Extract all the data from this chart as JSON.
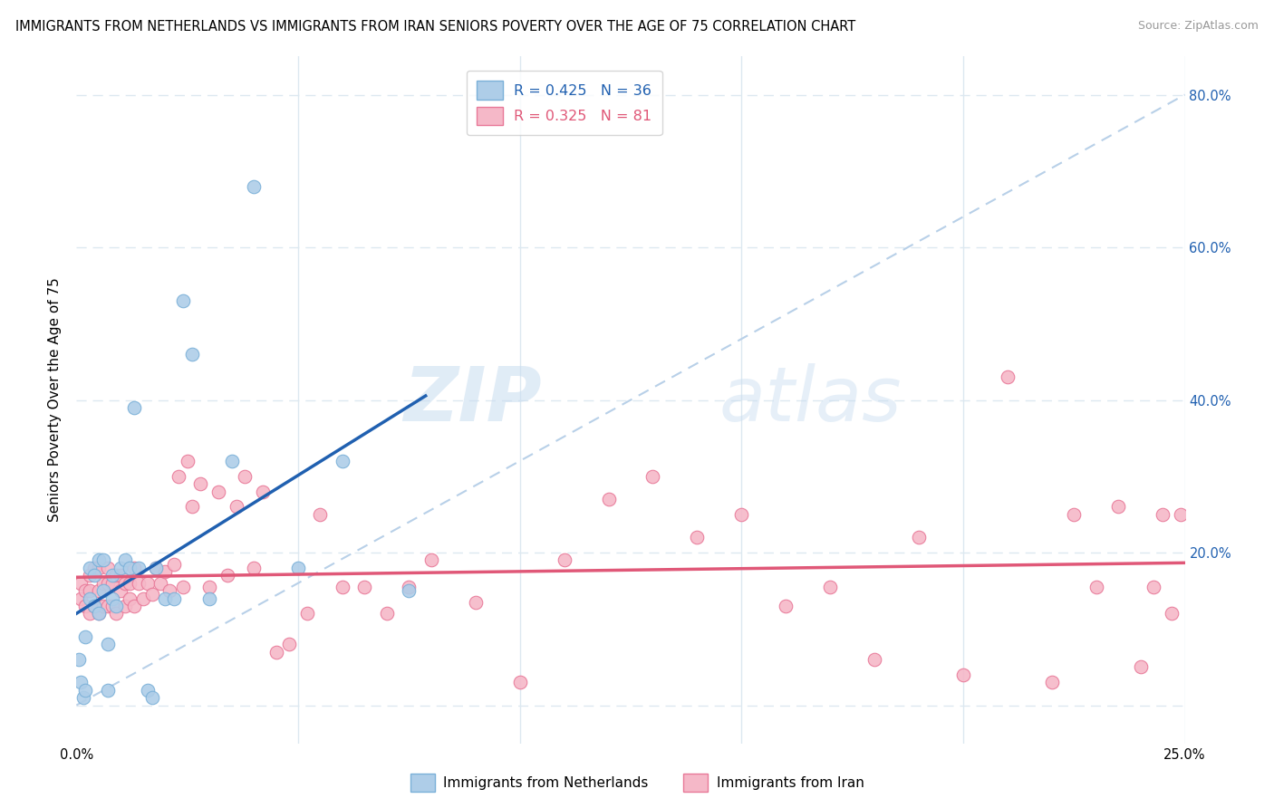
{
  "title": "IMMIGRANTS FROM NETHERLANDS VS IMMIGRANTS FROM IRAN SENIORS POVERTY OVER THE AGE OF 75 CORRELATION CHART",
  "source": "Source: ZipAtlas.com",
  "ylabel": "Seniors Poverty Over the Age of 75",
  "xlim": [
    0.0,
    0.25
  ],
  "ylim": [
    -0.05,
    0.85
  ],
  "yticks": [
    0.0,
    0.2,
    0.4,
    0.6,
    0.8
  ],
  "ytick_labels": [
    "",
    "20.0%",
    "40.0%",
    "60.0%",
    "80.0%"
  ],
  "netherlands_color": "#aecde8",
  "netherlands_edge": "#7ab0d8",
  "iran_color": "#f5b8c8",
  "iran_edge": "#e87898",
  "netherlands_line_color": "#2060b0",
  "iran_line_color": "#e05878",
  "diagonal_color": "#b8d0e8",
  "R_netherlands": 0.425,
  "N_netherlands": 36,
  "R_iran": 0.325,
  "N_iran": 81,
  "netherlands_x": [
    0.0005,
    0.001,
    0.0015,
    0.002,
    0.002,
    0.003,
    0.003,
    0.004,
    0.004,
    0.005,
    0.005,
    0.006,
    0.006,
    0.007,
    0.007,
    0.008,
    0.008,
    0.009,
    0.01,
    0.011,
    0.012,
    0.013,
    0.014,
    0.016,
    0.017,
    0.018,
    0.02,
    0.022,
    0.024,
    0.026,
    0.03,
    0.035,
    0.04,
    0.05,
    0.06,
    0.075
  ],
  "netherlands_y": [
    0.06,
    0.03,
    0.01,
    0.02,
    0.09,
    0.14,
    0.18,
    0.13,
    0.17,
    0.12,
    0.19,
    0.15,
    0.19,
    0.02,
    0.08,
    0.17,
    0.14,
    0.13,
    0.18,
    0.19,
    0.18,
    0.39,
    0.18,
    0.02,
    0.01,
    0.18,
    0.14,
    0.14,
    0.53,
    0.46,
    0.14,
    0.32,
    0.68,
    0.18,
    0.32,
    0.15
  ],
  "iran_x": [
    0.001,
    0.001,
    0.002,
    0.002,
    0.003,
    0.003,
    0.003,
    0.004,
    0.004,
    0.005,
    0.005,
    0.005,
    0.006,
    0.006,
    0.007,
    0.007,
    0.007,
    0.008,
    0.008,
    0.009,
    0.009,
    0.01,
    0.01,
    0.011,
    0.011,
    0.012,
    0.012,
    0.013,
    0.013,
    0.014,
    0.015,
    0.016,
    0.017,
    0.018,
    0.019,
    0.02,
    0.021,
    0.022,
    0.023,
    0.024,
    0.025,
    0.026,
    0.028,
    0.03,
    0.032,
    0.034,
    0.036,
    0.038,
    0.04,
    0.042,
    0.045,
    0.048,
    0.052,
    0.055,
    0.06,
    0.065,
    0.07,
    0.075,
    0.08,
    0.09,
    0.1,
    0.11,
    0.12,
    0.13,
    0.14,
    0.15,
    0.16,
    0.17,
    0.18,
    0.19,
    0.2,
    0.21,
    0.22,
    0.225,
    0.23,
    0.235,
    0.24,
    0.243,
    0.245,
    0.247,
    0.249
  ],
  "iran_y": [
    0.14,
    0.16,
    0.13,
    0.15,
    0.12,
    0.15,
    0.17,
    0.13,
    0.18,
    0.12,
    0.15,
    0.18,
    0.13,
    0.16,
    0.13,
    0.16,
    0.18,
    0.13,
    0.16,
    0.12,
    0.17,
    0.15,
    0.17,
    0.13,
    0.16,
    0.14,
    0.16,
    0.13,
    0.18,
    0.16,
    0.14,
    0.16,
    0.145,
    0.18,
    0.16,
    0.175,
    0.15,
    0.185,
    0.3,
    0.155,
    0.32,
    0.26,
    0.29,
    0.155,
    0.28,
    0.17,
    0.26,
    0.3,
    0.18,
    0.28,
    0.07,
    0.08,
    0.12,
    0.25,
    0.155,
    0.155,
    0.12,
    0.155,
    0.19,
    0.135,
    0.03,
    0.19,
    0.27,
    0.3,
    0.22,
    0.25,
    0.13,
    0.155,
    0.06,
    0.22,
    0.04,
    0.43,
    0.03,
    0.25,
    0.155,
    0.26,
    0.05,
    0.155,
    0.25,
    0.12,
    0.25
  ],
  "watermark_zip": "ZIP",
  "watermark_atlas": "atlas",
  "background_color": "#ffffff",
  "grid_color": "#dce8f0",
  "title_fontsize": 10.5,
  "source_fontsize": 9,
  "marker_size": 110
}
